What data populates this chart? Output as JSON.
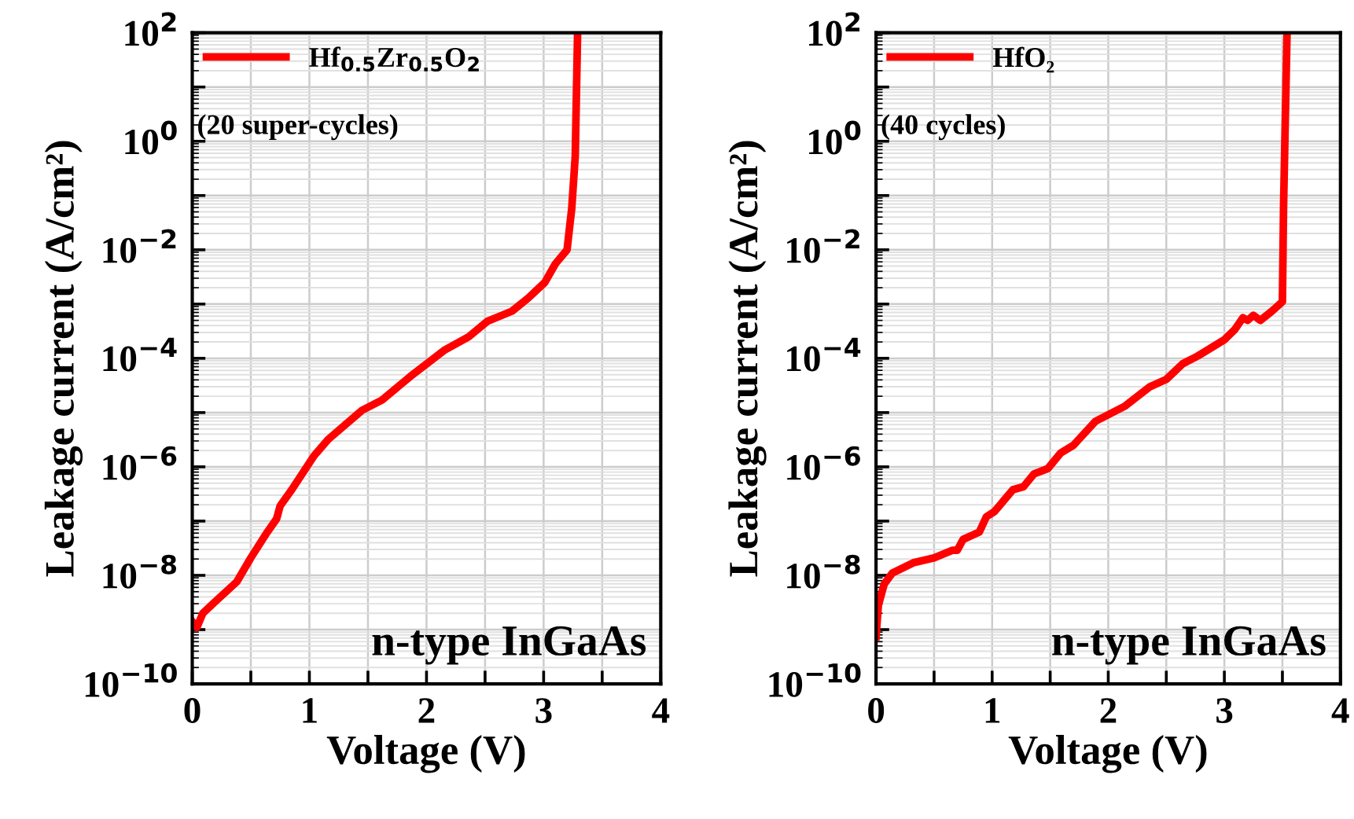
{
  "chart_data": [
    {
      "type": "line",
      "xlabel": "Voltage (V)",
      "ylabel": "Leakage current (A/cm²)",
      "log": "y",
      "xlim": [
        0,
        4
      ],
      "ylim": [
        1e-10,
        100
      ],
      "xticks": [
        0,
        {
          "value": 0.5,
          "label": null
        },
        1,
        {
          "value": 1.5,
          "label": null
        },
        2,
        {
          "value": 2.5,
          "label": null
        },
        3,
        {
          "value": 3.5,
          "label": null
        },
        4
      ],
      "yticks": [
        {
          "value": 1e-10,
          "label": "10$^{−10}$"
        },
        {
          "value": 1e-09,
          "label": null
        },
        {
          "value": 1e-08,
          "label": "10$^{−8}$"
        },
        {
          "value": 1e-07,
          "label": null
        },
        {
          "value": 1e-06,
          "label": "10$^{−6}$"
        },
        {
          "value": 1e-05,
          "label": null
        },
        {
          "value": 0.0001,
          "label": "10$^{−4}$"
        },
        {
          "value": 0.001,
          "label": null
        },
        {
          "value": 0.01,
          "label": "10$^{−2}$"
        },
        {
          "value": 0.1,
          "label": null
        },
        {
          "value": 1,
          "label": "10$^{0}$"
        },
        {
          "value": 10,
          "label": null
        },
        {
          "value": 100,
          "label": "10$^{2}$"
        }
      ],
      "grid": true,
      "legend": "top left",
      "line_style": "solid",
      "marker": "none",
      "annotations": [
        "(20 super-cycles)",
        "n-type InGaAs"
      ],
      "series": [
        {
          "name": "Hf$_{0.5}$Zr$_{0.5}$O$_{2}$",
          "color": "#ff0000",
          "x": [
            0,
            0.04,
            0.09,
            0.21,
            0.38,
            0.5,
            0.63,
            0.72,
            0.75,
            0.85,
            1.04,
            1.16,
            1.45,
            1.62,
            1.86,
            2.15,
            2.36,
            2.52,
            2.73,
            2.87,
            3.01,
            3.1,
            3.2,
            3.24,
            3.27,
            3.29
          ],
          "values": [
            1.4e-09,
            1.1e-09,
            2e-09,
            3.5e-09,
            7.6e-09,
            2.1e-08,
            5.8e-08,
            1.1e-07,
            1.9e-07,
            3.8e-07,
            1.6e-06,
            3.2e-06,
            1.1e-05,
            1.7e-05,
            4.6e-05,
            0.00014,
            0.00025,
            0.00048,
            0.00074,
            0.0013,
            0.0025,
            0.0055,
            0.01,
            0.058,
            0.54,
            100
          ]
        }
      ]
    },
    {
      "type": "line",
      "xlabel": "Voltage (V)",
      "ylabel": "Leakage current (A/cm²)",
      "log": "y",
      "xlim": [
        0,
        4
      ],
      "ylim": [
        1e-10,
        100
      ],
      "xticks": [
        0,
        {
          "value": 0.5,
          "label": null
        },
        1,
        {
          "value": 1.5,
          "label": null
        },
        2,
        {
          "value": 2.5,
          "label": null
        },
        3,
        {
          "value": 3.5,
          "label": null
        },
        4
      ],
      "yticks": [
        {
          "value": 1e-10,
          "label": "10$^{−10}$"
        },
        {
          "value": 1e-09,
          "label": null
        },
        {
          "value": 1e-08,
          "label": "10$^{−8}$"
        },
        {
          "value": 1e-07,
          "label": null
        },
        {
          "value": 1e-06,
          "label": "10$^{−6}$"
        },
        {
          "value": 1e-05,
          "label": null
        },
        {
          "value": 0.0001,
          "label": "10$^{−4}$"
        },
        {
          "value": 0.001,
          "label": null
        },
        {
          "value": 0.01,
          "label": "10$^{−2}$"
        },
        {
          "value": 0.1,
          "label": null
        },
        {
          "value": 1,
          "label": "10$^{0}$"
        },
        {
          "value": 10,
          "label": null
        },
        {
          "value": 100,
          "label": "10$^{2}$"
        }
      ],
      "grid": true,
      "legend": "top left",
      "line_style": "solid",
      "marker": "none",
      "annotations": [
        "(40 cycles)",
        "n-type InGaAs"
      ],
      "series": [
        {
          "name": "HfO₂",
          "color": "#ff0000",
          "x": [
            0,
            0.02,
            0.07,
            0.14,
            0.32,
            0.5,
            0.66,
            0.7,
            0.75,
            0.89,
            0.95,
            1.02,
            1.18,
            1.27,
            1.36,
            1.48,
            1.59,
            1.7,
            1.89,
            2.14,
            2.36,
            2.5,
            2.64,
            2.77,
            3.0,
            3.09,
            3.16,
            3.2,
            3.25,
            3.31,
            3.41,
            3.5,
            3.51,
            3.54
          ],
          "values": [
            7.4e-10,
            2.8e-09,
            6.9e-09,
            1.1e-08,
            1.7e-08,
            2.1e-08,
            2.9e-08,
            2.9e-08,
            4.6e-08,
            6.3e-08,
            1.2e-07,
            1.5e-07,
            3.8e-07,
            4.3e-07,
            7.4e-07,
            9.3e-07,
            1.8e-06,
            2.5e-06,
            6.9e-06,
            1.3e-05,
            3e-05,
            4.1e-05,
            7.9e-05,
            0.00011,
            0.00022,
            0.00034,
            0.00056,
            0.0005,
            0.00062,
            0.0005,
            0.00074,
            0.0011,
            0.065,
            100
          ]
        }
      ]
    }
  ]
}
